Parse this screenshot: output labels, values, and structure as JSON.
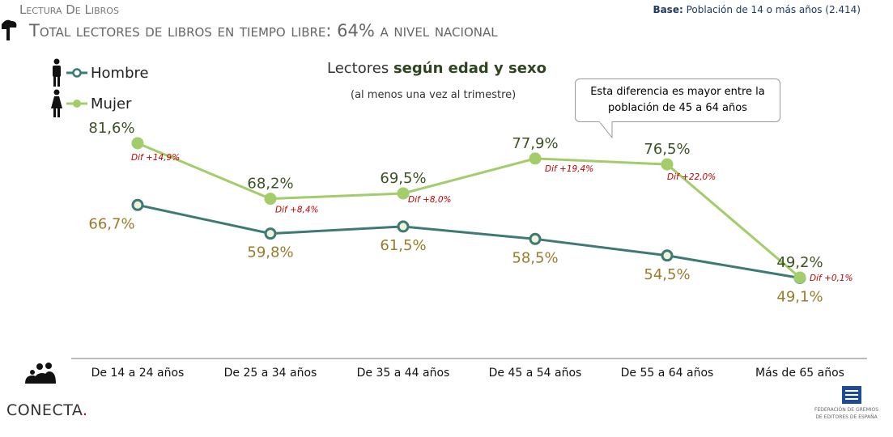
{
  "header": {
    "kicker": "Lectura De Libros",
    "title": "Total lectores de libros en tiempo libre: 64% a nivel nacional",
    "base_label": "Base:",
    "base_value": "Población de 14 o más años (2.414)"
  },
  "chart_data": {
    "type": "line",
    "title": "Lectores",
    "title_bold": "según edad y sexo",
    "subtitle": "(al menos una vez al trimestre)",
    "categories": [
      "De 14 a 24 años",
      "De 25 a 34 años",
      "De 35 a 44 años",
      "De 45 a 54 años",
      "De 55 a 64 años",
      "Más de 65 años"
    ],
    "series": [
      {
        "name": "Hombre",
        "color": "#3d7a74",
        "values": [
          66.7,
          59.8,
          61.5,
          58.5,
          54.5,
          49.1
        ],
        "labels": [
          "66,7%",
          "59,8%",
          "61,5%",
          "58,5%",
          "54,5%",
          "49,1%"
        ],
        "label_color": "#9a7b2c"
      },
      {
        "name": "Mujer",
        "color": "#a3cc6a",
        "values": [
          81.6,
          68.2,
          69.5,
          77.9,
          76.5,
          49.2
        ],
        "labels": [
          "81,6%",
          "68,2%",
          "69,5%",
          "77,9%",
          "76,5%",
          "49,2%"
        ],
        "label_color": "#3b5323"
      }
    ],
    "differences": [
      "Dif +14,9%",
      "Dif +8,4%",
      "Dif +8,0%",
      "Dif +19,4%",
      "Dif +22,0%",
      "Dif +0,1%"
    ],
    "annotation": "Esta diferencia es mayor entre la población de 45 a 64 años",
    "grid": false,
    "legend": "top-left"
  },
  "footer": {
    "logo_left": "CONECTA",
    "logo_right_line1": "FEDERACIÓN DE GREMIOS",
    "logo_right_line2": "DE EDITORES DE ESPAÑA"
  }
}
